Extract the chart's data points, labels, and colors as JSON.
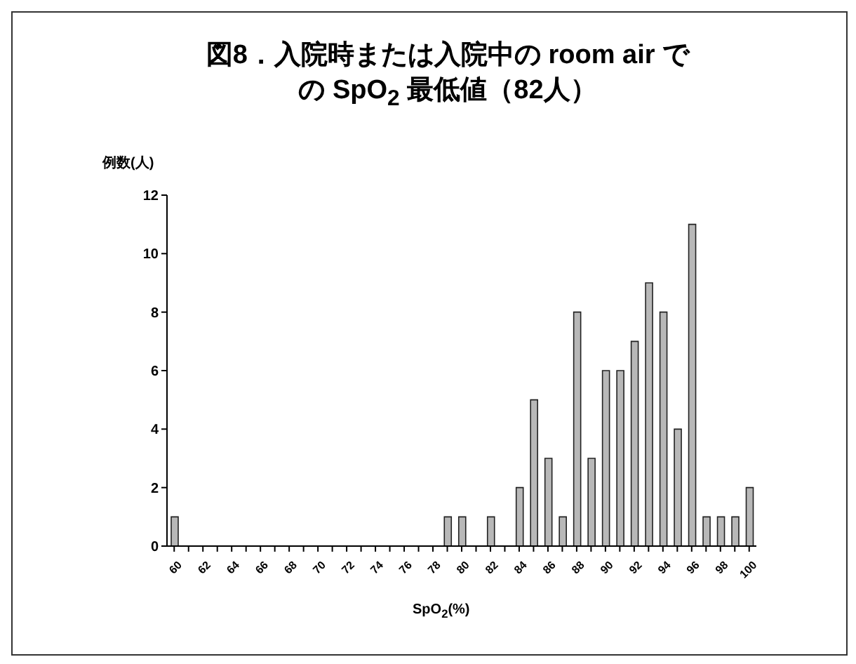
{
  "chart_data": {
    "type": "bar",
    "title": "図8．入院時または入院中の room air での SpO$_{2}$ 最低値（82人）",
    "ylabel": "例数(人)",
    "xlabel": "SpO$_{2}$(%)",
    "categories": [
      "60",
      null,
      "62",
      null,
      "64",
      null,
      "66",
      null,
      "68",
      null,
      "70",
      null,
      "72",
      null,
      "74",
      null,
      "76",
      null,
      "78",
      null,
      "80",
      null,
      "82",
      null,
      "84",
      null,
      "86",
      null,
      "88",
      null,
      "90",
      null,
      "92",
      null,
      "94",
      null,
      "96",
      null,
      "98",
      null,
      "100"
    ],
    "values": [
      1,
      0,
      0,
      0,
      0,
      0,
      0,
      0,
      0,
      0,
      0,
      0,
      0,
      0,
      0,
      0,
      0,
      0,
      0,
      1,
      1,
      0,
      1,
      0,
      2,
      5,
      3,
      1,
      8,
      3,
      6,
      6,
      7,
      9,
      8,
      4,
      11,
      1,
      1,
      1,
      2
    ],
    "color": "#b8b8b8",
    "ylim": [
      0,
      12
    ],
    "yticks": [
      0,
      2,
      4,
      6,
      8,
      10,
      12
    ]
  }
}
